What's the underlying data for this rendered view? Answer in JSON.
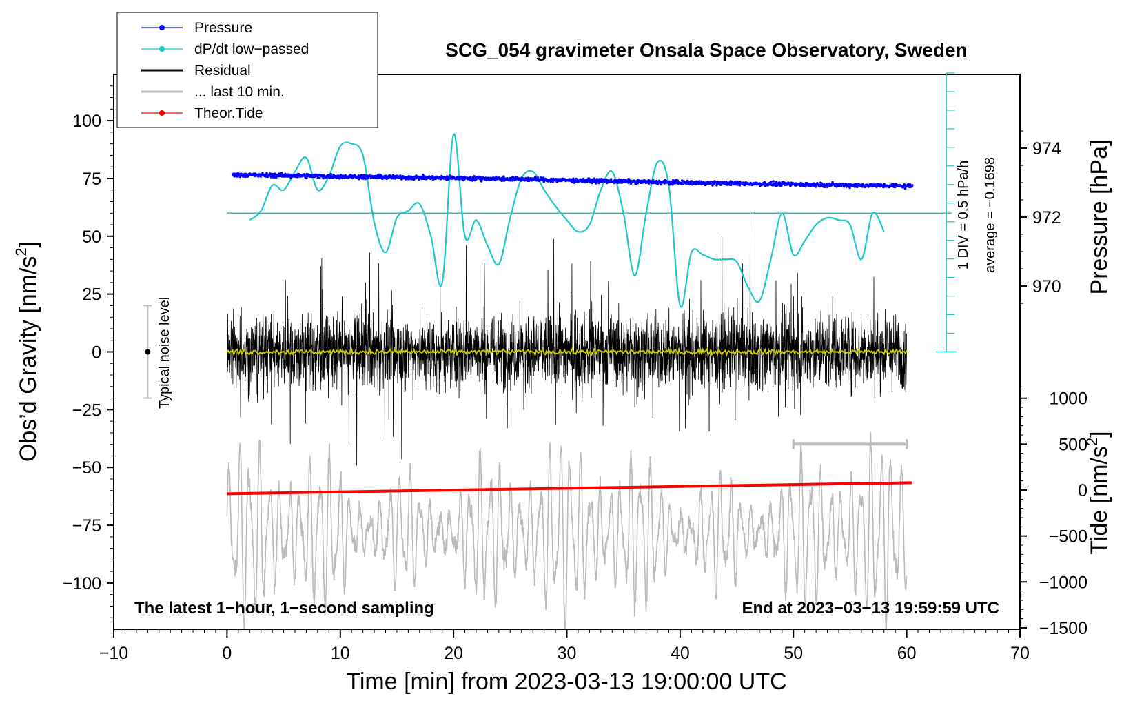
{
  "chart_data": {
    "type": "line",
    "title": "SCG_054 gravimeter Onsala Space Observatory, Sweden",
    "xlabel": "Time [min] from 2023-03-13 19:00:00 UTC",
    "ylabel": "Obs’d Gravity [nm/s²]",
    "ylabel_base": "Obs’d Gravity [nm/s",
    "ylabel_sup": "2",
    "ylabel_end": "]",
    "y2label": "Pressure [hPa]",
    "y3label": "Tide [nm/s²]",
    "y3label_base": "Tide [nm/s",
    "y3label_sup": "2",
    "y3label_end": "]",
    "xlim": [
      -10,
      70
    ],
    "ylim": [
      -120,
      120
    ],
    "xticks": [
      -10,
      0,
      10,
      20,
      30,
      40,
      50,
      60,
      70
    ],
    "xtick_labels": [
      "−10",
      "0",
      "10",
      "20",
      "30",
      "40",
      "50",
      "60",
      "70"
    ],
    "yticks": [
      100,
      75,
      50,
      25,
      0,
      -25,
      -50,
      -75,
      -100
    ],
    "ytick_labels": [
      "100",
      "75",
      "50",
      "25",
      "0",
      "−25",
      "−50",
      "−75",
      "−100"
    ],
    "pressure_ticks": [
      974,
      972,
      970
    ],
    "pressure_tick_labels": [
      "974",
      "972",
      "970"
    ],
    "tide_ticks": [
      1000,
      500,
      0,
      -500,
      -1000,
      -1500
    ],
    "tide_tick_labels": [
      "1000",
      "500",
      "0",
      "−500",
      "−1000",
      "−1500"
    ],
    "legend": [
      {
        "label": "Pressure",
        "color": "#0000ff",
        "style": "line-dot"
      },
      {
        "label": "dP/dt low−passed",
        "color": "#1fc7c7",
        "style": "line-dot"
      },
      {
        "label": "Residual",
        "color": "#000000",
        "style": "line-thick"
      },
      {
        "label": "... last 10 min.",
        "color": "#bbbbbb",
        "style": "line-thick"
      },
      {
        "label": "Theor.Tide",
        "color": "#ff0000",
        "style": "line-dot"
      }
    ],
    "series": [
      {
        "name": "Pressure",
        "axis": "pressure_hPa",
        "start": [
          0.5,
          973.2
        ],
        "end": [
          60.5,
          972.9
        ],
        "noise": 0.08,
        "color": "#0000ff"
      },
      {
        "name": "dP/dt low-passed",
        "axis": "gravity_nm_s2",
        "x": [
          2,
          3,
          4,
          5,
          6,
          7,
          8,
          9,
          10,
          11,
          12,
          13,
          14,
          15,
          16,
          17,
          18,
          19,
          20,
          21,
          22,
          23,
          24,
          25,
          26,
          27,
          28,
          29,
          30,
          31,
          32,
          33,
          34,
          35,
          36,
          37,
          38,
          39,
          40,
          41,
          42,
          43,
          44,
          45,
          46,
          47,
          48,
          49,
          50,
          51,
          52,
          53,
          54,
          55,
          56,
          57,
          58
        ],
        "y": [
          57,
          61,
          72,
          70,
          78,
          84,
          70,
          76,
          89,
          90,
          85,
          56,
          43,
          58,
          61,
          64,
          50,
          30,
          94,
          50,
          57,
          46,
          38,
          58,
          75,
          78,
          70,
          63,
          57,
          52,
          55,
          70,
          78,
          60,
          33,
          60,
          82,
          72,
          20,
          43,
          42,
          40,
          40,
          39,
          28,
          22,
          40,
          60,
          42,
          48,
          55,
          58,
          57,
          55,
          40,
          60,
          52
        ],
        "color": "#1fc7c7"
      },
      {
        "name": "Residual",
        "axis": "gravity_nm_s2",
        "x_range": [
          0,
          60
        ],
        "amplitude": 25,
        "color": "#000000"
      },
      {
        "name": "Residual smoothed",
        "axis": "gravity_nm_s2",
        "x_range": [
          0,
          60
        ],
        "level": 0,
        "color": "#c8c800"
      },
      {
        "name": "... last 10 min.",
        "axis": "gravity_nm_s2",
        "x_range": [
          0,
          60
        ],
        "center": -78,
        "amplitude": 22,
        "color": "#bbbbbb"
      },
      {
        "name": "Theor.Tide",
        "axis": "tide_nm_s2",
        "start": [
          0,
          -40
        ],
        "end": [
          60.5,
          80
        ],
        "color": "#ff0000"
      }
    ],
    "dpdt_reference": {
      "value": 60,
      "x_range": [
        0,
        64
      ]
    },
    "dpdt_scale": {
      "label": "1 DIV = 0.5 hPa/h",
      "average_label": "average = −0.1698"
    },
    "noise_bar": {
      "label": "Typical noise level",
      "x": -7,
      "range": [
        -20,
        20
      ],
      "center": 0
    },
    "last10_bar": {
      "x_range": [
        50,
        60
      ],
      "y": 500
    },
    "annotations": {
      "left": "The latest 1−hour, 1−second sampling",
      "right": "End at 2023−03−13 19:59:59 UTC"
    }
  },
  "colors": {
    "pressure": "#0000ff",
    "dpdt": "#1fc7c7",
    "residual": "#000000",
    "smoothed": "#c8c800",
    "last10": "#bbbbbb",
    "tide": "#ff0000"
  }
}
